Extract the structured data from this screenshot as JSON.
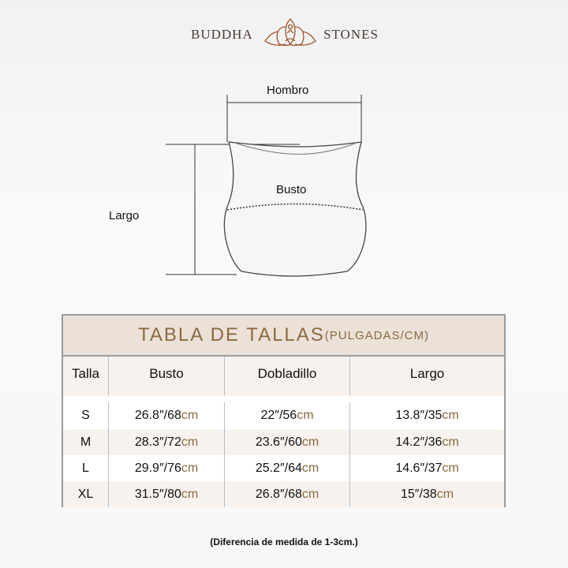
{
  "logo": {
    "left": "BUDDHA",
    "right": "STONES",
    "icon": "lotus-meditation-icon",
    "color": "#a0522d"
  },
  "diagram": {
    "shoulder": "Hombro",
    "bust": "Busto",
    "length": "Largo"
  },
  "table": {
    "title": "TABLA DE TALLAS",
    "unit": "(PULGADAS/CM)",
    "headers": [
      "Talla",
      "Busto",
      "Dobladillo",
      "Largo"
    ],
    "rows": [
      {
        "size": "S",
        "bust": "26.8″/68",
        "hem": "22″/56",
        "length": "13.8″/35"
      },
      {
        "size": "M",
        "bust": "28.3″/72",
        "hem": "23.6″/60",
        "length": "14.2″/36"
      },
      {
        "size": "L",
        "bust": "29.9″/76",
        "hem": "25.2″/64",
        "length": "14.6″/37"
      },
      {
        "size": "XL",
        "bust": "31.5″/80",
        "hem": "26.8″/68",
        "length": "15″/38"
      }
    ],
    "unit_suffix": "cm",
    "accent": "#8a6a3e"
  },
  "note": "(Diferencia de medida de 1-3cm.)"
}
